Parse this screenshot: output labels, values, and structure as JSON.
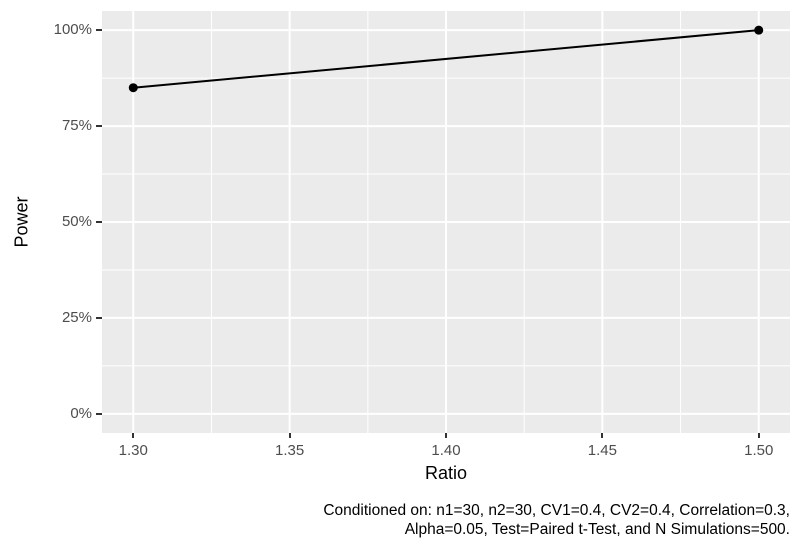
{
  "chart_data": {
    "type": "line",
    "title": "",
    "xlabel": "Ratio",
    "ylabel": "Power",
    "x": [
      1.3,
      1.5
    ],
    "series": [
      {
        "name": "Power",
        "values": [
          85,
          100
        ]
      }
    ],
    "x_ticks": [
      1.3,
      1.35,
      1.4,
      1.45,
      1.5
    ],
    "x_tick_labels": [
      "1.30",
      "1.35",
      "1.40",
      "1.45",
      "1.50"
    ],
    "y_ticks": [
      0,
      25,
      50,
      75,
      100
    ],
    "y_tick_labels": [
      "0%",
      "25%",
      "50%",
      "75%",
      "100%"
    ],
    "x_minor_ticks": [
      1.325,
      1.375,
      1.425,
      1.475
    ],
    "y_minor_ticks": [
      12.5,
      37.5,
      62.5,
      87.5
    ],
    "xlim": [
      1.29,
      1.51
    ],
    "ylim": [
      -5,
      105
    ],
    "grid": true,
    "legend": "none",
    "caption_lines": [
      "Conditioned on: n1=30, n2=30, CV1=0.4, CV2=0.4, Correlation=0.3,",
      "Alpha=0.05, Test=Paired t-Test, and N Simulations=500."
    ]
  },
  "colors": {
    "background": "#FFFFFF",
    "panel_background": "#EBEBEB",
    "grid": "#FFFFFF",
    "line": "#000000",
    "point": "#000000",
    "tick_label": "#4D4D4D",
    "tick_mark": "#333333",
    "axis_title": "#000000",
    "caption": "#000000"
  }
}
